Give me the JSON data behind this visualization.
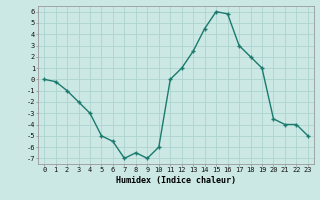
{
  "x": [
    0,
    1,
    2,
    3,
    4,
    5,
    6,
    7,
    8,
    9,
    10,
    11,
    12,
    13,
    14,
    15,
    16,
    17,
    18,
    19,
    20,
    21,
    22,
    23
  ],
  "y": [
    0,
    -0.2,
    -1,
    -2,
    -3,
    -5,
    -5.5,
    -7,
    -6.5,
    -7,
    -6,
    0,
    1,
    2.5,
    4.5,
    6,
    5.8,
    3,
    2,
    1,
    -3.5,
    -4,
    -4,
    -5
  ],
  "line_color": "#1a7a6e",
  "bg_color": "#cce8e4",
  "grid_color": "#aed4cf",
  "xlabel": "Humidex (Indice chaleur)",
  "xlim": [
    -0.5,
    23.5
  ],
  "ylim": [
    -7.5,
    6.5
  ],
  "yticks": [
    6,
    5,
    4,
    3,
    2,
    1,
    0,
    -1,
    -2,
    -3,
    -4,
    -5,
    -6,
    -7
  ],
  "xticks": [
    0,
    1,
    2,
    3,
    4,
    5,
    6,
    7,
    8,
    9,
    10,
    11,
    12,
    13,
    14,
    15,
    16,
    17,
    18,
    19,
    20,
    21,
    22,
    23
  ],
  "xlabel_fontsize": 6,
  "tick_fontsize": 5
}
